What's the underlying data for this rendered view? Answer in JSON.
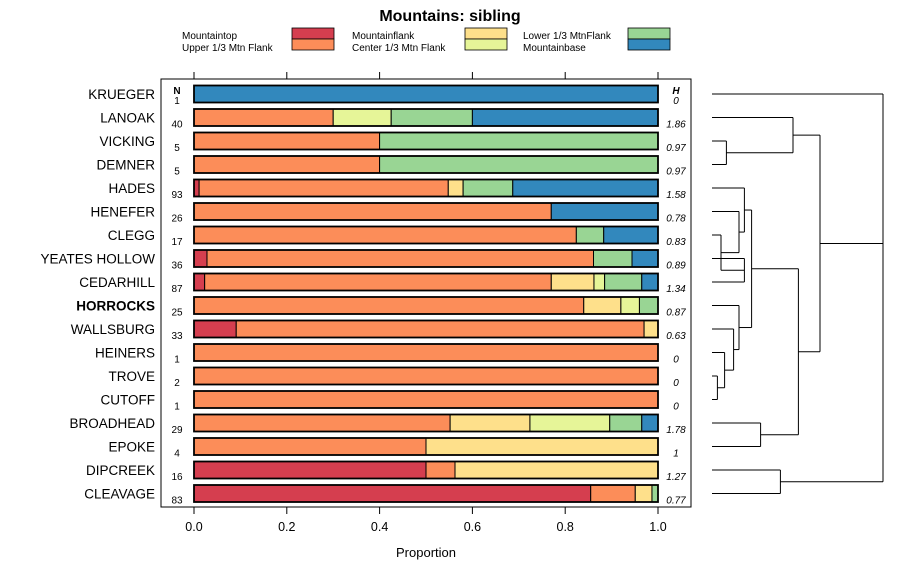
{
  "chart_data": {
    "type": "bar",
    "title": "Mountains: sibling",
    "xlabel": "Proportion",
    "xlim": [
      0,
      1
    ],
    "xticks": [
      0.0,
      0.2,
      0.4,
      0.6,
      0.8,
      1.0
    ],
    "xtick_labels": [
      "0.0",
      "0.2",
      "0.4",
      "0.6",
      "0.8",
      "1.0"
    ],
    "n_header": "N",
    "h_header": "H",
    "stacked": true,
    "categories_order": [
      "Mountaintop",
      "Upper 1/3 Mtn Flank",
      "Mountainflank",
      "Center 1/3 Mtn Flank",
      "Lower 1/3 MtnFlank",
      "Mountainbase"
    ],
    "legend": [
      {
        "name": "Mountaintop",
        "color": "#d53e4f"
      },
      {
        "name": "Upper 1/3 Mtn Flank",
        "color": "#fc8d59"
      },
      {
        "name": "Mountainflank",
        "color": "#fee08b"
      },
      {
        "name": "Center 1/3 Mtn Flank",
        "color": "#e6f598"
      },
      {
        "name": "Lower 1/3 MtnFlank",
        "color": "#99d594"
      },
      {
        "name": "Mountainbase",
        "color": "#3288bd"
      }
    ],
    "rows": [
      {
        "label": "KRUEGER",
        "n": "1",
        "h": "0",
        "bold": false,
        "values": [
          0,
          0,
          0,
          0,
          0,
          1
        ]
      },
      {
        "label": "LANOAK",
        "n": "40",
        "h": "1.86",
        "bold": false,
        "values": [
          0,
          0.3,
          0,
          0.125,
          0.175,
          0.4
        ]
      },
      {
        "label": "VICKING",
        "n": "5",
        "h": "0.97",
        "bold": false,
        "values": [
          0,
          0.4,
          0,
          0,
          0.6,
          0
        ]
      },
      {
        "label": "DEMNER",
        "n": "5",
        "h": "0.97",
        "bold": false,
        "values": [
          0,
          0.4,
          0,
          0,
          0.6,
          0
        ]
      },
      {
        "label": "HADES",
        "n": "93",
        "h": "1.58",
        "bold": false,
        "values": [
          0.011,
          0.537,
          0.032,
          0,
          0.107,
          0.313
        ]
      },
      {
        "label": "HENEFER",
        "n": "26",
        "h": "0.78",
        "bold": false,
        "values": [
          0,
          0.77,
          0,
          0,
          0,
          0.23
        ]
      },
      {
        "label": "CLEGG",
        "n": "17",
        "h": "0.83",
        "bold": false,
        "values": [
          0,
          0.824,
          0,
          0,
          0.059,
          0.117
        ]
      },
      {
        "label": "YEATES HOLLOW",
        "n": "36",
        "h": "0.89",
        "bold": false,
        "values": [
          0.028,
          0.833,
          0,
          0,
          0.083,
          0.056
        ]
      },
      {
        "label": "CEDARHILL",
        "n": "87",
        "h": "1.34",
        "bold": false,
        "values": [
          0.023,
          0.747,
          0.092,
          0.023,
          0.08,
          0.035
        ]
      },
      {
        "label": "HORROCKS",
        "n": "25",
        "h": "0.87",
        "bold": true,
        "values": [
          0,
          0.84,
          0.08,
          0.04,
          0.04,
          0
        ]
      },
      {
        "label": "WALLSBURG",
        "n": "33",
        "h": "0.63",
        "bold": false,
        "values": [
          0.091,
          0.879,
          0.03,
          0,
          0,
          0
        ]
      },
      {
        "label": "HEINERS",
        "n": "1",
        "h": "0",
        "bold": false,
        "values": [
          0,
          1,
          0,
          0,
          0,
          0
        ]
      },
      {
        "label": "TROVE",
        "n": "2",
        "h": "0",
        "bold": false,
        "values": [
          0,
          1,
          0,
          0,
          0,
          0
        ]
      },
      {
        "label": "CUTOFF",
        "n": "1",
        "h": "0",
        "bold": false,
        "values": [
          0,
          1,
          0,
          0,
          0,
          0
        ]
      },
      {
        "label": "BROADHEAD",
        "n": "29",
        "h": "1.78",
        "bold": false,
        "values": [
          0,
          0.552,
          0.172,
          0.172,
          0.069,
          0.035
        ]
      },
      {
        "label": "EPOKE",
        "n": "4",
        "h": "1",
        "bold": false,
        "values": [
          0,
          0.5,
          0.5,
          0,
          0,
          0
        ]
      },
      {
        "label": "DIPCREEK",
        "n": "16",
        "h": "1.27",
        "bold": false,
        "values": [
          0.5,
          0.0625,
          0.4375,
          0,
          0,
          0
        ]
      },
      {
        "label": "CLEAVAGE",
        "n": "83",
        "h": "0.77",
        "bold": false,
        "values": [
          0.855,
          0.096,
          0.036,
          0,
          0.013,
          0
        ]
      }
    ],
    "dendrogram": {
      "leaf_order": [
        "KRUEGER",
        "LANOAK",
        "VICKING",
        "DEMNER",
        "HADES",
        "HENEFER",
        "CLEGG",
        "YEATES HOLLOW",
        "CEDARHILL",
        "HORROCKS",
        "WALLSBURG",
        "HEINERS",
        "TROVE",
        "CUTOFF",
        "BROADHEAD",
        "EPOKE",
        "DIPCREEK",
        "CLEAVAGE"
      ],
      "merges": [
        {
          "a": 2,
          "b": 3,
          "height": 0.08
        },
        {
          "a": "m0",
          "b": 1,
          "height": 0.45
        },
        {
          "a": 7,
          "b": 8,
          "height": 0.18
        },
        {
          "a": 6,
          "b": "m2",
          "height": 0.05
        },
        {
          "a": 5,
          "b": "m3",
          "height": 0.15
        },
        {
          "a": 4,
          "b": "m4",
          "height": 0.18
        },
        {
          "a": 12,
          "b": 13,
          "height": 0.03
        },
        {
          "a": 11,
          "b": "m6",
          "height": 0.07
        },
        {
          "a": 10,
          "b": "m7",
          "height": 0.12
        },
        {
          "a": 9,
          "b": "m8",
          "height": 0.15
        },
        {
          "a": "m5",
          "b": "m9",
          "height": 0.22
        },
        {
          "a": 14,
          "b": 15,
          "height": 0.27
        },
        {
          "a": "m10",
          "b": "m11",
          "height": 0.48
        },
        {
          "a": "m1",
          "b": "m12",
          "height": 0.6
        },
        {
          "a": 16,
          "b": 17,
          "height": 0.38
        },
        {
          "a": 0,
          "b": "m13",
          "height": 0.95
        },
        {
          "a": "m15",
          "b": "m14",
          "height": 0.95
        }
      ]
    }
  }
}
